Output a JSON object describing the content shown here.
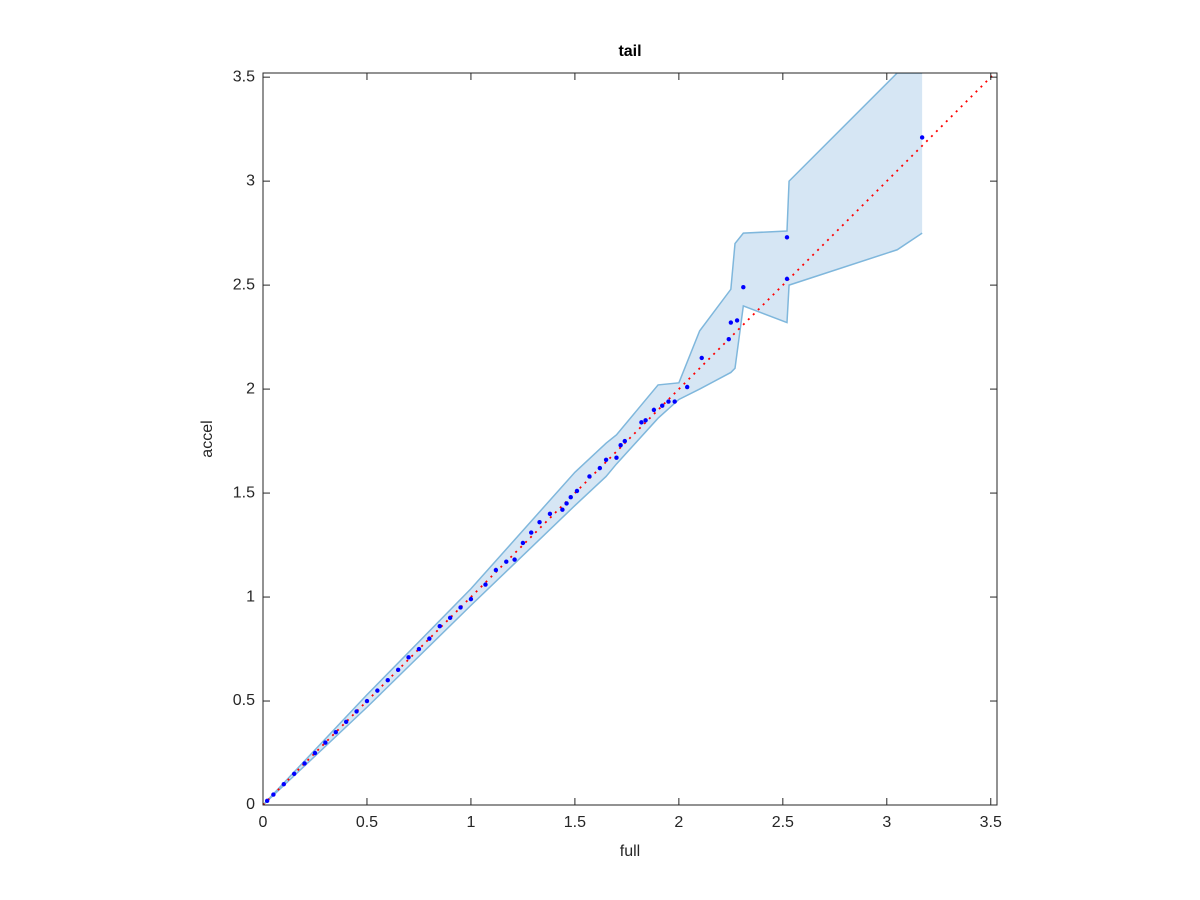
{
  "chart_data": {
    "type": "scatter",
    "title": "tail",
    "x_label": "full",
    "y_label": "accel",
    "xlim": [
      0,
      3.53
    ],
    "ylim": [
      0,
      3.52
    ],
    "xticks": [
      0,
      0.5,
      1,
      1.5,
      2,
      2.5,
      3,
      3.5
    ],
    "yticks": [
      0,
      0.5,
      1,
      1.5,
      2,
      2.5,
      3,
      3.5
    ],
    "grid": false,
    "color": "#0000ff",
    "x": [
      0.02,
      0.05,
      0.1,
      0.15,
      0.2,
      0.25,
      0.3,
      0.35,
      0.4,
      0.45,
      0.5,
      0.55,
      0.6,
      0.65,
      0.7,
      0.75,
      0.8,
      0.85,
      0.9,
      0.95,
      1.0,
      1.07,
      1.12,
      1.17,
      1.21,
      1.25,
      1.29,
      1.33,
      1.38,
      1.44,
      1.46,
      1.48,
      1.51,
      1.57,
      1.62,
      1.65,
      1.7,
      1.72,
      1.74,
      1.82,
      1.84,
      1.88,
      1.92,
      1.95,
      1.98,
      2.04,
      2.11,
      2.24,
      2.25,
      2.28,
      2.31,
      2.52,
      2.52,
      3.17
    ],
    "values": [
      0.02,
      0.05,
      0.1,
      0.15,
      0.2,
      0.25,
      0.3,
      0.35,
      0.4,
      0.45,
      0.5,
      0.55,
      0.6,
      0.65,
      0.71,
      0.75,
      0.8,
      0.86,
      0.9,
      0.95,
      0.99,
      1.06,
      1.13,
      1.17,
      1.18,
      1.26,
      1.31,
      1.36,
      1.4,
      1.42,
      1.45,
      1.48,
      1.51,
      1.58,
      1.62,
      1.66,
      1.67,
      1.73,
      1.75,
      1.84,
      1.85,
      1.9,
      1.92,
      1.94,
      1.94,
      2.01,
      2.15,
      2.24,
      2.32,
      2.33,
      2.49,
      2.53,
      2.73,
      3.21
    ],
    "reference_line": {
      "color": "#ff0000",
      "x": [
        0,
        3.52
      ],
      "y": [
        0,
        3.52
      ]
    },
    "band": {
      "color": "#d6e6f4",
      "edge_color": "#7fb7dc",
      "x": [
        0,
        0.5,
        1.0,
        1.5,
        1.65,
        1.7,
        1.9,
        2.0,
        2.1,
        2.25,
        2.27,
        2.31,
        2.52,
        2.53,
        3.05,
        3.17
      ],
      "upper": [
        0,
        0.53,
        1.04,
        1.6,
        1.74,
        1.78,
        2.02,
        2.03,
        2.28,
        2.48,
        2.7,
        2.75,
        2.76,
        3.0,
        3.52,
        3.52
      ],
      "lower": [
        0,
        0.47,
        0.96,
        1.44,
        1.58,
        1.64,
        1.86,
        1.95,
        2.0,
        2.08,
        2.1,
        2.4,
        2.32,
        2.5,
        2.67,
        2.75
      ]
    }
  }
}
